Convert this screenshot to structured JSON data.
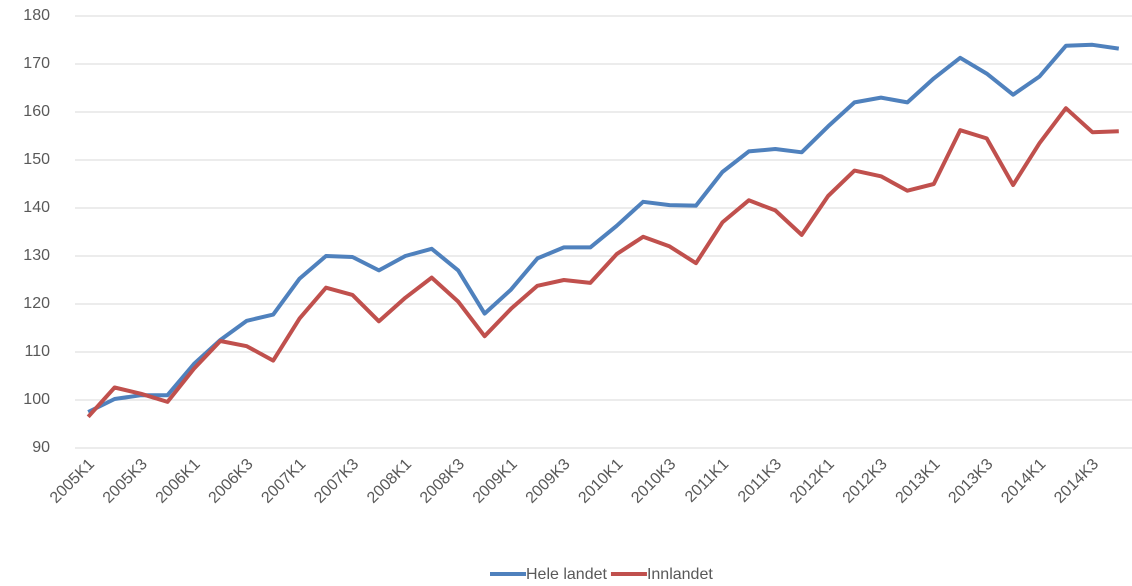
{
  "chart_data": {
    "type": "line",
    "categories": [
      "2005K1",
      null,
      "2005K3",
      null,
      "2006K1",
      null,
      "2006K3",
      null,
      "2007K1",
      null,
      "2007K3",
      null,
      "2008K1",
      null,
      "2008K3",
      null,
      "2009K1",
      null,
      "2009K3",
      null,
      "2010K1",
      null,
      "2010K3",
      null,
      "2011K1",
      null,
      "2011K3",
      null,
      "2012K1",
      null,
      "2012K3",
      null,
      "2013K1",
      null,
      "2013K3",
      null,
      "2014K1",
      null,
      "2014K3",
      null
    ],
    "series": [
      {
        "name": "Hele landet",
        "color": "#4f81bd",
        "values": [
          97.5,
          100.2,
          101,
          101,
          107.5,
          112.5,
          116.5,
          117.8,
          125.3,
          130,
          129.8,
          127,
          130,
          131.5,
          127,
          118,
          123,
          129.5,
          131.8,
          131.8,
          136.3,
          141.3,
          140.6,
          140.5,
          147.5,
          151.8,
          152.3,
          151.6,
          157,
          162,
          163,
          162,
          167,
          171.3,
          168,
          163.6,
          167.4,
          173.8,
          174,
          173.2
        ]
      },
      {
        "name": "Innlandet",
        "color": "#c0504d",
        "values": [
          96.5,
          102.6,
          101.3,
          99.6,
          106.5,
          112.3,
          111.2,
          108.2,
          117,
          123.4,
          121.9,
          116.4,
          121.3,
          125.5,
          120.5,
          113.3,
          119,
          123.8,
          125,
          124.4,
          130.4,
          134,
          132,
          128.5,
          137,
          141.6,
          139.5,
          134.4,
          142.5,
          147.8,
          146.6,
          143.6,
          145,
          156.2,
          154.5,
          144.8,
          153.5,
          160.8,
          155.8,
          156
        ]
      }
    ],
    "ylim": [
      90,
      180
    ],
    "yticks": [
      90,
      100,
      110,
      120,
      130,
      140,
      150,
      160,
      170,
      180
    ],
    "grid": true,
    "legend": "bottom"
  }
}
